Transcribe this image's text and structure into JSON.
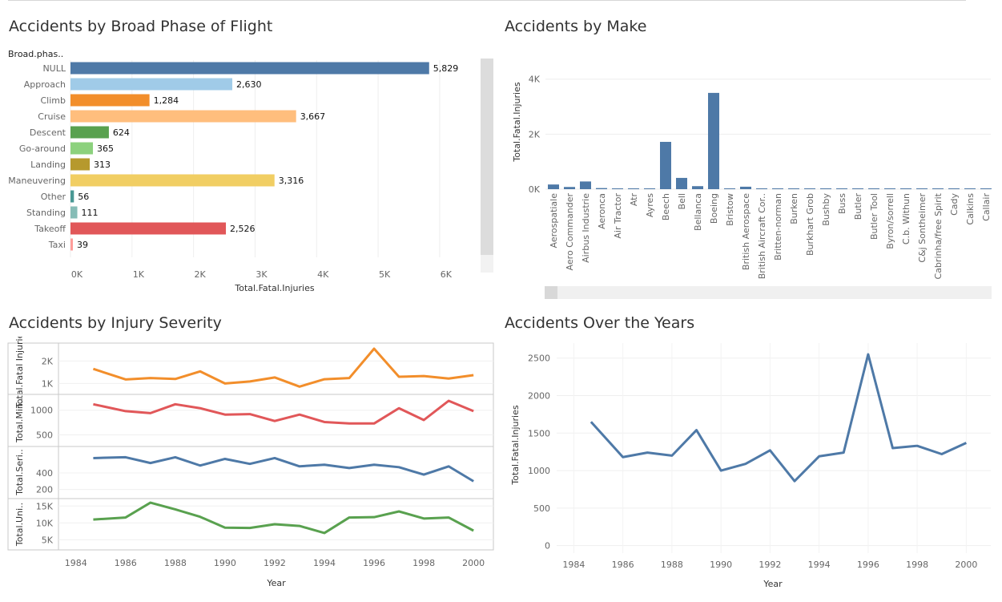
{
  "titles": {
    "phase": "Accidents by Broad Phase of Flight",
    "make": "Accidents by Make",
    "severity": "Accidents by Injury Severity",
    "years": "Accidents Over the Years"
  },
  "chart_data": [
    {
      "type": "bar",
      "orientation": "horizontal",
      "title": "Accidents by Broad Phase of Flight",
      "row_header": "Broad.phas..",
      "xlabel": "Total.Fatal.Injuries",
      "categories": [
        "NULL",
        "Approach",
        "Climb",
        "Cruise",
        "Descent",
        "Go-around",
        "Landing",
        "Maneuvering",
        "Other",
        "Standing",
        "Takeoff",
        "Taxi"
      ],
      "values": [
        5829,
        2630,
        1284,
        3667,
        624,
        365,
        313,
        3316,
        56,
        111,
        2526,
        39
      ],
      "value_labels": [
        "5,829",
        "2,630",
        "1,284",
        "3,667",
        "624",
        "365",
        "313",
        "3,316",
        "56",
        "111",
        "2,526",
        "39"
      ],
      "colors": [
        "#4e79a7",
        "#a0cbe8",
        "#f28e2b",
        "#ffbe7d",
        "#59a14f",
        "#8cd17d",
        "#b6992d",
        "#f1ce63",
        "#499894",
        "#86bcb6",
        "#e15759",
        "#ff9d9a"
      ],
      "xticks": [
        0,
        1000,
        2000,
        3000,
        4000,
        5000,
        6000
      ],
      "xtick_labels": [
        "0K",
        "1K",
        "2K",
        "3K",
        "4K",
        "5K",
        "6K"
      ],
      "xlim": [
        0,
        6600
      ],
      "grid": true
    },
    {
      "type": "bar",
      "title": "Accidents by Make",
      "ylabel": "Total.Fatal.Injuries",
      "categories": [
        "Aerospatiale",
        "Aero Commander",
        "Airbus Industrie",
        "Aeronca",
        "Air Tractor",
        "Atr",
        "Ayres",
        "Beech",
        "Bell",
        "Bellanca",
        "Boeing",
        "Bristow",
        "British Aerospace",
        "British Aircraft Cor..",
        "Britten-norman",
        "Burken",
        "Burkhart Grob",
        "Bushby",
        "Buss",
        "Butler",
        "Butler Tool",
        "Byron/sorrell",
        "C.b. Withun",
        "C&j Sontheimer",
        "Cabrinha/free Spirit",
        "Cady",
        "Calkins",
        "Callair"
      ],
      "values": [
        170,
        80,
        280,
        40,
        20,
        30,
        20,
        1720,
        410,
        110,
        3500,
        0,
        90,
        0,
        10,
        0,
        10,
        0,
        0,
        0,
        0,
        0,
        0,
        0,
        0,
        0,
        0,
        0
      ],
      "yticks": [
        0,
        2000,
        4000
      ],
      "ytick_labels": [
        "0K",
        "2K",
        "4K"
      ],
      "ylim": [
        0,
        4400
      ],
      "color": "#4e79a7",
      "grid": true
    },
    {
      "type": "line",
      "title": "Accidents by Injury Severity",
      "xlabel": "Year",
      "x": [
        1984.7,
        1986,
        1987,
        1988,
        1989,
        1990,
        1991,
        1992,
        1993,
        1994,
        1995,
        1996,
        1997,
        1998,
        1999,
        2000
      ],
      "xticks": [
        1984,
        1986,
        1988,
        1990,
        1992,
        1994,
        1996,
        1998,
        2000
      ],
      "xlim": [
        1983.3,
        2000.8
      ],
      "series": [
        {
          "name": "Total.Fatal Injuries",
          "color": "#f28e2b",
          "values": [
            1650,
            1180,
            1240,
            1200,
            1540,
            1000,
            1090,
            1270,
            860,
            1190,
            1240,
            2550,
            1300,
            1330,
            1220,
            1370
          ],
          "ylim": [
            550,
            2800
          ],
          "yticks": [
            1000,
            2000
          ],
          "ytick_labels": [
            "1K",
            "2K"
          ]
        },
        {
          "name": "Total.Min..",
          "color": "#e15759",
          "values": [
            1120,
            980,
            940,
            1120,
            1040,
            910,
            920,
            780,
            910,
            760,
            730,
            730,
            1040,
            800,
            1190,
            980
          ],
          "ylim": [
            280,
            1320
          ],
          "yticks": [
            500,
            1000
          ],
          "ytick_labels": [
            "500",
            "1000"
          ]
        },
        {
          "name": "Total.Seri..",
          "color": "#4e79a7",
          "values": [
            580,
            590,
            520,
            590,
            490,
            570,
            510,
            580,
            480,
            500,
            460,
            500,
            470,
            380,
            480,
            300
          ],
          "ylim": [
            100,
            720
          ],
          "yticks": [
            200,
            400
          ],
          "ytick_labels": [
            "200",
            "400"
          ]
        },
        {
          "name": "Total.Uni..",
          "color": "#59a14f",
          "values": [
            11000,
            11600,
            16000,
            14000,
            11800,
            8600,
            8500,
            9600,
            9100,
            7000,
            11600,
            11700,
            13400,
            11300,
            11600,
            7700
          ],
          "ylim": [
            2000,
            17200
          ],
          "yticks": [
            5000,
            10000,
            15000
          ],
          "ytick_labels": [
            "5K",
            "10K",
            "15K"
          ]
        }
      ]
    },
    {
      "type": "line",
      "title": "Accidents Over the Years",
      "xlabel": "Year",
      "ylabel": "Total.Fatal.Injuries",
      "x": [
        1984.7,
        1986,
        1987,
        1988,
        1989,
        1990,
        1991,
        1992,
        1993,
        1994,
        1995,
        1996,
        1997,
        1998,
        1999,
        2000
      ],
      "values": [
        1650,
        1180,
        1240,
        1200,
        1540,
        1000,
        1090,
        1270,
        860,
        1190,
        1240,
        2550,
        1300,
        1330,
        1220,
        1370
      ],
      "xticks": [
        1984,
        1986,
        1988,
        1990,
        1992,
        1994,
        1996,
        1998,
        2000
      ],
      "yticks": [
        0,
        500,
        1000,
        1500,
        2000,
        2500
      ],
      "xlim": [
        1983.3,
        2001
      ],
      "ylim": [
        -100,
        2700
      ],
      "color": "#4e79a7",
      "grid": true
    }
  ]
}
